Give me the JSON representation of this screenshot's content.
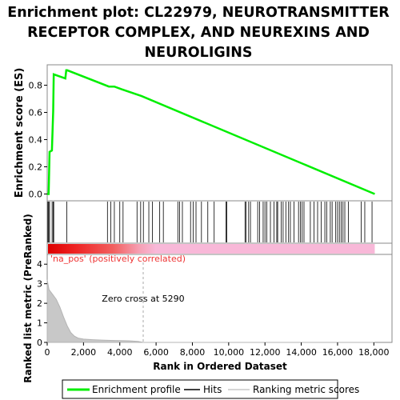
{
  "chart_data": {
    "type": "line",
    "title_lines": [
      "Enrichment plot: CL22979, NEUROTRANSMITTER",
      "RECEPTOR COMPLEX, AND NEUREXINS AND",
      "NEUROLIGINS"
    ],
    "xlabel": "Rank in Ordered Dataset",
    "ylabel_top": "Enrichment score (ES)",
    "ylabel_bottom": "Ranked list metric (PreRanked)",
    "xlim": [
      0,
      19000
    ],
    "x_ticks": [
      0,
      2000,
      4000,
      6000,
      8000,
      10000,
      12000,
      14000,
      16000,
      18000
    ],
    "x_tick_labels": [
      "0",
      "2,000",
      "4,000",
      "6,000",
      "8,000",
      "10,000",
      "12,000",
      "14,000",
      "16,000",
      "18,000"
    ],
    "es_ylim": [
      -0.05,
      0.95
    ],
    "es_ticks": [
      0.0,
      0.2,
      0.4,
      0.6,
      0.8
    ],
    "es_tick_labels": [
      "0.0",
      "0.2",
      "0.4",
      "0.6",
      "0.8"
    ],
    "metric_ylim": [
      0,
      4.5
    ],
    "metric_ticks": [
      0,
      1,
      2,
      3,
      4
    ],
    "metric_tick_labels": [
      "0",
      "1",
      "2",
      "3",
      "4"
    ],
    "series": [
      {
        "name": "Enrichment profile",
        "color": "#00ee00",
        "x": [
          0,
          80,
          130,
          260,
          330,
          360,
          1000,
          1050,
          1100,
          3400,
          3700,
          4100,
          5200,
          18050
        ],
        "y": [
          0.0,
          0.0,
          0.31,
          0.32,
          0.61,
          0.88,
          0.85,
          0.91,
          0.91,
          0.79,
          0.79,
          0.77,
          0.72,
          0.0
        ]
      }
    ],
    "hits": [
      40,
      80,
      130,
      270,
      330,
      360,
      1080,
      3320,
      3500,
      3700,
      4000,
      4180,
      4950,
      5150,
      5300,
      5600,
      5800,
      6200,
      6400,
      7200,
      7300,
      7450,
      7900,
      8050,
      8200,
      8500,
      8850,
      9200,
      9850,
      9900,
      10900,
      10950,
      11100,
      11200,
      11600,
      11700,
      11900,
      12000,
      12100,
      12300,
      12500,
      12650,
      12700,
      12900,
      13000,
      13150,
      13300,
      13400,
      13600,
      13850,
      13950,
      14050,
      14150,
      14500,
      14700,
      14900,
      15100,
      15300,
      15400,
      15600,
      15700,
      15900,
      16000,
      16100,
      16200,
      16300,
      16400,
      16600,
      17300,
      17500,
      17900
    ],
    "metric_curve": {
      "x": [
        0,
        100,
        300,
        500,
        700,
        900,
        1100,
        1300,
        1500,
        1700,
        2000,
        2500,
        3000,
        3500,
        4000,
        4500,
        5000,
        5290,
        6000,
        10000,
        18050
      ],
      "y": [
        3.2,
        2.7,
        2.45,
        2.2,
        1.8,
        1.3,
        0.85,
        0.5,
        0.32,
        0.22,
        0.17,
        0.14,
        0.12,
        0.1,
        0.09,
        0.08,
        0.05,
        0.0,
        0.0,
        0.0,
        0.0
      ]
    },
    "colorbar_label": "'na_pos' (positively correlated)",
    "zero_cross_label": "Zero cross at 5290",
    "zero_cross_x": 5290,
    "legend": [
      "Enrichment profile",
      "Hits",
      "Ranking metric scores"
    ],
    "colors": {
      "enrichment": "#00ee00",
      "hits": "#000000",
      "metric_fill": "#c8c8c8",
      "metric_line": "#b4b4b4",
      "colorbar_red": "#ee0000",
      "colorbar_pink": "#f8b8d8",
      "label_red": "#ee3333"
    }
  }
}
